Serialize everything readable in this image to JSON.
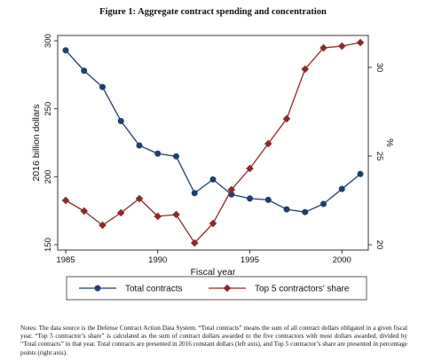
{
  "figure_title": "Figure 1: Aggregate contract spending and concentration",
  "notes": "Notes: The data source is the Defense Contract Action Data System. “Total contracts” means the sum of all contract dollars obligated in a given fiscal year. “Top 5 contractor’s share” is calculated as the sum of contract dollars awarded to the five contractors with most dollars awarded, divided by “Total contracts” in that year. Total contracts are presented in 2016 constant dollars (left axis), and Top 5 contractor’s share are presented in percentage points (right axis).",
  "chart_data": {
    "type": "line",
    "title": "Figure 1: Aggregate contract spending and concentration",
    "xlabel": "Fiscal year",
    "ylabel_left": "2016 billion dollars",
    "ylabel_right": "%",
    "xlim": [
      1985,
      2001
    ],
    "ylim_left": [
      150,
      300
    ],
    "ylim_right": [
      20,
      31.5
    ],
    "x_ticks": [
      "1985",
      "1990",
      "1995",
      "2000"
    ],
    "y_left_ticks": [
      "150",
      "200",
      "250",
      "300"
    ],
    "y_right_ticks": [
      "20",
      "25",
      "30"
    ],
    "grid": false,
    "legend_position": "bottom",
    "x": [
      1985,
      1986,
      1987,
      1988,
      1989,
      1990,
      1991,
      1992,
      1993,
      1994,
      1995,
      1996,
      1997,
      1998,
      1999,
      2000,
      2001
    ],
    "series": [
      {
        "name": "Total contracts",
        "axis": "left",
        "color": "#1f3f6e",
        "marker": "circle",
        "values": [
          293,
          278,
          266,
          241,
          223,
          217,
          215,
          188,
          198,
          187,
          184,
          183,
          176,
          174,
          180,
          191,
          202
        ]
      },
      {
        "name": "Top 5 contractors' share",
        "axis": "right",
        "color": "#8b2a2a",
        "marker": "diamond",
        "values": [
          22.5,
          21.9,
          21.1,
          21.8,
          22.6,
          21.6,
          21.7,
          20.1,
          21.2,
          23.1,
          24.3,
          25.7,
          27.1,
          29.9,
          31.1,
          31.2,
          31.4
        ]
      }
    ]
  }
}
